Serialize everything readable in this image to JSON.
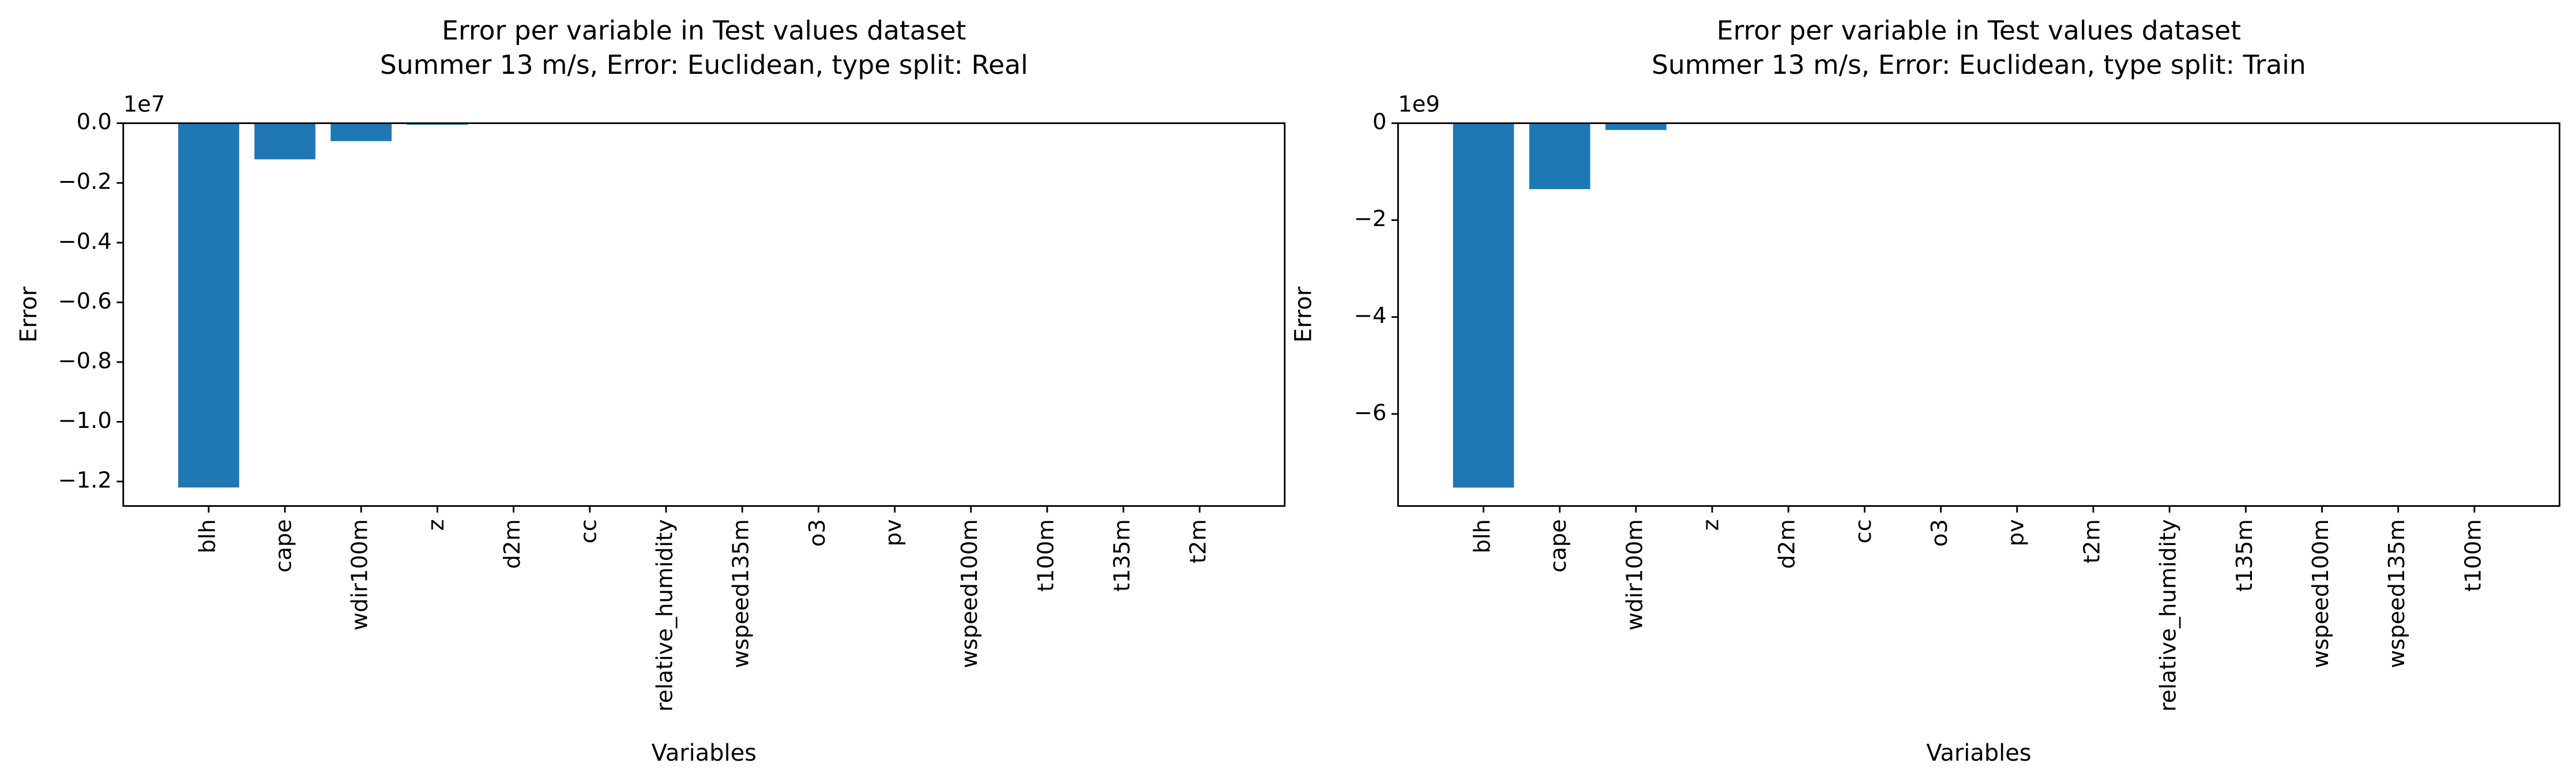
{
  "chart_data": [
    {
      "type": "bar",
      "title": "Error per variable in Test values dataset",
      "subtitle": "Summer 13 m/s, Error: Euclidean, type split: Real",
      "x_label": "Variables",
      "y_label": "Error",
      "axis_offset_label": "1e7",
      "categories": [
        "blh",
        "cape",
        "wdir100m",
        "z",
        "d2m",
        "cc",
        "relative_humidity",
        "wspeed135m",
        "o3",
        "pv",
        "wspeed100m",
        "t100m",
        "t135m",
        "t2m"
      ],
      "values": [
        -1.22,
        -0.121,
        -0.06,
        -0.005,
        0,
        0,
        0,
        0,
        0,
        0,
        0,
        0,
        0,
        0
      ],
      "color": "#1f77b4",
      "ylim": [
        -1.282,
        0
      ],
      "yticks": [
        {
          "value": 0,
          "label": "0.0"
        },
        {
          "value": -0.2,
          "label": "−0.2"
        },
        {
          "value": -0.4,
          "label": "−0.4"
        },
        {
          "value": -0.6,
          "label": "−0.6"
        },
        {
          "value": -0.8,
          "label": "−0.8"
        },
        {
          "value": -1.0,
          "label": "−1.0"
        },
        {
          "value": -1.2,
          "label": "−1.2"
        }
      ]
    },
    {
      "type": "bar",
      "title": "Error per variable in Test values dataset",
      "subtitle": "Summer 13 m/s, Error: Euclidean, type split: Train",
      "x_label": "Variables",
      "y_label": "Error",
      "axis_offset_label": "1e9",
      "categories": [
        "blh",
        "cape",
        "wdir100m",
        "z",
        "d2m",
        "cc",
        "o3",
        "pv",
        "t2m",
        "relative_humidity",
        "t135m",
        "wspeed100m",
        "wspeed135m",
        "t100m"
      ],
      "values": [
        -7.52,
        -1.36,
        -0.14,
        -0.01,
        0,
        0,
        0,
        0,
        0,
        0,
        0,
        0,
        0,
        0
      ],
      "color": "#1f77b4",
      "ylim": [
        -7.9,
        0
      ],
      "yticks": [
        {
          "value": 0,
          "label": "0"
        },
        {
          "value": -2,
          "label": "−2"
        },
        {
          "value": -4,
          "label": "−4"
        },
        {
          "value": -6,
          "label": "−6"
        }
      ]
    }
  ]
}
